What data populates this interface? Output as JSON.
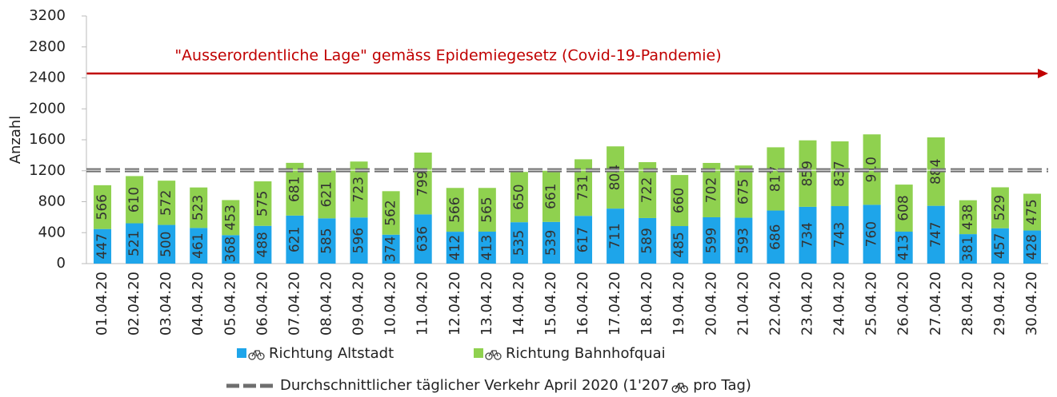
{
  "chart_data": {
    "type": "stacked_bar",
    "annotation": "\"Ausserordentliche Lage\" gemäss Epidemiegesetz (Covid-19-Pandemie)",
    "y_label": "Anzahl",
    "categories": [
      "01.04.20",
      "02.04.20",
      "03.04.20",
      "04.04.20",
      "05.04.20",
      "06.04.20",
      "07.04.20",
      "08.04.20",
      "09.04.20",
      "10.04.20",
      "11.04.20",
      "12.04.20",
      "13.04.20",
      "14.04.20",
      "15.04.20",
      "16.04.20",
      "17.04.20",
      "18.04.20",
      "19.04.20",
      "20.04.20",
      "21.04.20",
      "22.04.20",
      "23.04.20",
      "24.04.20",
      "25.04.20",
      "26.04.20",
      "27.04.20",
      "28.04.20",
      "29.04.20",
      "30.04.20"
    ],
    "series": [
      {
        "name": "Richtung Altstadt",
        "color": "#1ea5ea",
        "values": [
          447,
          521,
          500,
          461,
          368,
          488,
          621,
          585,
          596,
          374,
          636,
          412,
          413,
          535,
          539,
          617,
          711,
          589,
          485,
          599,
          593,
          686,
          734,
          743,
          760,
          413,
          747,
          381,
          457,
          428
        ]
      },
      {
        "name": "Richtung Bahnhofquai",
        "color": "#8fd14f",
        "values": [
          566,
          610,
          572,
          523,
          453,
          575,
          681,
          621,
          723,
          562,
          799,
          566,
          565,
          650,
          661,
          731,
          804,
          722,
          660,
          702,
          675,
          817,
          859,
          837,
          910,
          608,
          884,
          438,
          529,
          475
        ]
      }
    ],
    "reference_line": {
      "value": 1207,
      "color": "#6e6e6e",
      "label": [
        "Durchschnittlicher täglicher Verkehr April 2020 (1'207",
        "pro Tag)"
      ]
    },
    "ylim": [
      0,
      3200
    ],
    "yticks": [
      0,
      400,
      800,
      1200,
      1600,
      2000,
      2400,
      2800,
      3200
    ],
    "grid": false
  }
}
